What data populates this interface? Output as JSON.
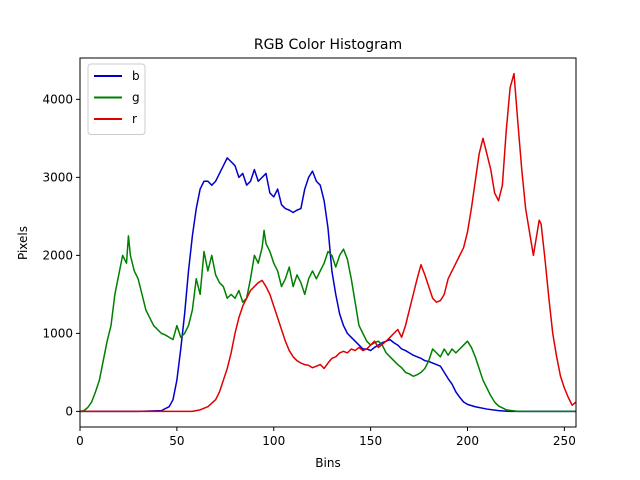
{
  "chart_data": {
    "type": "line",
    "title": "RGB Color Histogram",
    "xlabel": "Bins",
    "ylabel": "Pixels",
    "xlim": [
      0,
      256
    ],
    "ylim": [
      -200,
      4530
    ],
    "xticks": [
      0,
      50,
      100,
      150,
      200,
      250
    ],
    "yticks": [
      0,
      1000,
      2000,
      3000,
      4000
    ],
    "legend": "top-left",
    "grid": false,
    "series": [
      {
        "name": "b",
        "color": "#0000cc",
        "points": [
          [
            0,
            0
          ],
          [
            30,
            0
          ],
          [
            42,
            10
          ],
          [
            46,
            60
          ],
          [
            48,
            150
          ],
          [
            50,
            400
          ],
          [
            52,
            800
          ],
          [
            54,
            1250
          ],
          [
            56,
            1800
          ],
          [
            58,
            2250
          ],
          [
            60,
            2600
          ],
          [
            62,
            2850
          ],
          [
            64,
            2950
          ],
          [
            66,
            2950
          ],
          [
            68,
            2900
          ],
          [
            70,
            2950
          ],
          [
            72,
            3050
          ],
          [
            74,
            3150
          ],
          [
            76,
            3250
          ],
          [
            78,
            3200
          ],
          [
            80,
            3150
          ],
          [
            82,
            3000
          ],
          [
            84,
            3050
          ],
          [
            86,
            2900
          ],
          [
            88,
            2950
          ],
          [
            90,
            3100
          ],
          [
            92,
            2950
          ],
          [
            94,
            3000
          ],
          [
            96,
            3050
          ],
          [
            98,
            2800
          ],
          [
            100,
            2750
          ],
          [
            102,
            2850
          ],
          [
            104,
            2650
          ],
          [
            106,
            2600
          ],
          [
            108,
            2580
          ],
          [
            110,
            2550
          ],
          [
            112,
            2580
          ],
          [
            114,
            2600
          ],
          [
            116,
            2850
          ],
          [
            118,
            3000
          ],
          [
            120,
            3080
          ],
          [
            122,
            2950
          ],
          [
            124,
            2900
          ],
          [
            126,
            2700
          ],
          [
            128,
            2350
          ],
          [
            130,
            1800
          ],
          [
            132,
            1500
          ],
          [
            134,
            1250
          ],
          [
            136,
            1100
          ],
          [
            138,
            1000
          ],
          [
            140,
            950
          ],
          [
            142,
            900
          ],
          [
            144,
            850
          ],
          [
            146,
            800
          ],
          [
            148,
            800
          ],
          [
            150,
            780
          ],
          [
            152,
            820
          ],
          [
            154,
            850
          ],
          [
            156,
            880
          ],
          [
            158,
            900
          ],
          [
            160,
            920
          ],
          [
            162,
            880
          ],
          [
            164,
            850
          ],
          [
            166,
            800
          ],
          [
            168,
            780
          ],
          [
            170,
            750
          ],
          [
            172,
            720
          ],
          [
            174,
            700
          ],
          [
            176,
            680
          ],
          [
            178,
            650
          ],
          [
            180,
            640
          ],
          [
            182,
            620
          ],
          [
            184,
            600
          ],
          [
            186,
            580
          ],
          [
            188,
            500
          ],
          [
            190,
            420
          ],
          [
            192,
            350
          ],
          [
            194,
            250
          ],
          [
            196,
            180
          ],
          [
            198,
            120
          ],
          [
            200,
            90
          ],
          [
            204,
            60
          ],
          [
            210,
            30
          ],
          [
            216,
            10
          ],
          [
            222,
            0
          ],
          [
            256,
            0
          ]
        ]
      },
      {
        "name": "g",
        "color": "#008000",
        "points": [
          [
            0,
            0
          ],
          [
            2,
            10
          ],
          [
            4,
            50
          ],
          [
            6,
            120
          ],
          [
            8,
            250
          ],
          [
            10,
            400
          ],
          [
            12,
            650
          ],
          [
            14,
            900
          ],
          [
            16,
            1100
          ],
          [
            18,
            1500
          ],
          [
            20,
            1750
          ],
          [
            22,
            2000
          ],
          [
            24,
            1900
          ],
          [
            25,
            2250
          ],
          [
            26,
            2000
          ],
          [
            28,
            1800
          ],
          [
            30,
            1700
          ],
          [
            32,
            1500
          ],
          [
            34,
            1300
          ],
          [
            36,
            1200
          ],
          [
            38,
            1100
          ],
          [
            40,
            1050
          ],
          [
            42,
            1000
          ],
          [
            44,
            980
          ],
          [
            46,
            950
          ],
          [
            48,
            920
          ],
          [
            50,
            1100
          ],
          [
            52,
            950
          ],
          [
            54,
            1000
          ],
          [
            56,
            1100
          ],
          [
            58,
            1300
          ],
          [
            60,
            1700
          ],
          [
            62,
            1500
          ],
          [
            64,
            2050
          ],
          [
            66,
            1800
          ],
          [
            68,
            2000
          ],
          [
            70,
            1750
          ],
          [
            72,
            1650
          ],
          [
            74,
            1600
          ],
          [
            76,
            1450
          ],
          [
            78,
            1500
          ],
          [
            80,
            1450
          ],
          [
            82,
            1550
          ],
          [
            84,
            1400
          ],
          [
            86,
            1450
          ],
          [
            88,
            1700
          ],
          [
            90,
            2000
          ],
          [
            92,
            1900
          ],
          [
            94,
            2100
          ],
          [
            95,
            2320
          ],
          [
            96,
            2150
          ],
          [
            98,
            2050
          ],
          [
            100,
            1900
          ],
          [
            102,
            1800
          ],
          [
            104,
            1600
          ],
          [
            106,
            1700
          ],
          [
            108,
            1850
          ],
          [
            110,
            1600
          ],
          [
            112,
            1750
          ],
          [
            114,
            1650
          ],
          [
            116,
            1500
          ],
          [
            118,
            1700
          ],
          [
            120,
            1800
          ],
          [
            122,
            1700
          ],
          [
            124,
            1800
          ],
          [
            126,
            1900
          ],
          [
            128,
            2050
          ],
          [
            130,
            2000
          ],
          [
            132,
            1850
          ],
          [
            134,
            2000
          ],
          [
            136,
            2080
          ],
          [
            138,
            1950
          ],
          [
            140,
            1700
          ],
          [
            142,
            1400
          ],
          [
            144,
            1100
          ],
          [
            146,
            1000
          ],
          [
            148,
            900
          ],
          [
            150,
            850
          ],
          [
            152,
            880
          ],
          [
            154,
            900
          ],
          [
            156,
            850
          ],
          [
            158,
            750
          ],
          [
            160,
            700
          ],
          [
            162,
            650
          ],
          [
            164,
            600
          ],
          [
            166,
            560
          ],
          [
            168,
            500
          ],
          [
            170,
            480
          ],
          [
            172,
            450
          ],
          [
            174,
            470
          ],
          [
            176,
            500
          ],
          [
            178,
            550
          ],
          [
            180,
            650
          ],
          [
            182,
            800
          ],
          [
            184,
            750
          ],
          [
            186,
            700
          ],
          [
            188,
            800
          ],
          [
            190,
            720
          ],
          [
            192,
            800
          ],
          [
            194,
            750
          ],
          [
            196,
            800
          ],
          [
            198,
            850
          ],
          [
            200,
            900
          ],
          [
            202,
            820
          ],
          [
            204,
            700
          ],
          [
            206,
            550
          ],
          [
            208,
            400
          ],
          [
            210,
            300
          ],
          [
            212,
            200
          ],
          [
            214,
            120
          ],
          [
            216,
            70
          ],
          [
            220,
            20
          ],
          [
            226,
            0
          ],
          [
            256,
            0
          ]
        ]
      },
      {
        "name": "r",
        "color": "#e00000",
        "points": [
          [
            0,
            0
          ],
          [
            58,
            0
          ],
          [
            62,
            20
          ],
          [
            66,
            60
          ],
          [
            70,
            150
          ],
          [
            72,
            250
          ],
          [
            74,
            400
          ],
          [
            76,
            550
          ],
          [
            78,
            750
          ],
          [
            80,
            1000
          ],
          [
            82,
            1200
          ],
          [
            84,
            1350
          ],
          [
            86,
            1450
          ],
          [
            88,
            1550
          ],
          [
            90,
            1600
          ],
          [
            92,
            1650
          ],
          [
            94,
            1680
          ],
          [
            96,
            1600
          ],
          [
            98,
            1500
          ],
          [
            100,
            1350
          ],
          [
            102,
            1200
          ],
          [
            104,
            1050
          ],
          [
            106,
            900
          ],
          [
            108,
            780
          ],
          [
            110,
            700
          ],
          [
            112,
            650
          ],
          [
            114,
            620
          ],
          [
            116,
            600
          ],
          [
            118,
            590
          ],
          [
            120,
            560
          ],
          [
            122,
            580
          ],
          [
            124,
            600
          ],
          [
            126,
            550
          ],
          [
            128,
            620
          ],
          [
            130,
            680
          ],
          [
            132,
            700
          ],
          [
            134,
            750
          ],
          [
            136,
            770
          ],
          [
            138,
            750
          ],
          [
            140,
            800
          ],
          [
            142,
            780
          ],
          [
            144,
            820
          ],
          [
            146,
            780
          ],
          [
            148,
            800
          ],
          [
            150,
            850
          ],
          [
            152,
            900
          ],
          [
            154,
            820
          ],
          [
            156,
            860
          ],
          [
            158,
            900
          ],
          [
            160,
            950
          ],
          [
            162,
            1000
          ],
          [
            164,
            1050
          ],
          [
            166,
            950
          ],
          [
            168,
            1100
          ],
          [
            170,
            1300
          ],
          [
            172,
            1500
          ],
          [
            174,
            1700
          ],
          [
            176,
            1880
          ],
          [
            178,
            1750
          ],
          [
            180,
            1600
          ],
          [
            182,
            1450
          ],
          [
            184,
            1400
          ],
          [
            186,
            1420
          ],
          [
            188,
            1500
          ],
          [
            190,
            1700
          ],
          [
            192,
            1800
          ],
          [
            194,
            1900
          ],
          [
            196,
            2000
          ],
          [
            198,
            2100
          ],
          [
            200,
            2300
          ],
          [
            202,
            2600
          ],
          [
            204,
            2950
          ],
          [
            206,
            3300
          ],
          [
            208,
            3500
          ],
          [
            210,
            3300
          ],
          [
            212,
            3100
          ],
          [
            214,
            2800
          ],
          [
            216,
            2700
          ],
          [
            218,
            2900
          ],
          [
            220,
            3600
          ],
          [
            222,
            4150
          ],
          [
            224,
            4330
          ],
          [
            226,
            3700
          ],
          [
            228,
            3100
          ],
          [
            230,
            2600
          ],
          [
            232,
            2300
          ],
          [
            234,
            2000
          ],
          [
            236,
            2300
          ],
          [
            237,
            2450
          ],
          [
            238,
            2400
          ],
          [
            240,
            1950
          ],
          [
            242,
            1450
          ],
          [
            244,
            1000
          ],
          [
            246,
            700
          ],
          [
            248,
            450
          ],
          [
            250,
            300
          ],
          [
            252,
            180
          ],
          [
            254,
            80
          ],
          [
            256,
            120
          ]
        ]
      }
    ]
  }
}
